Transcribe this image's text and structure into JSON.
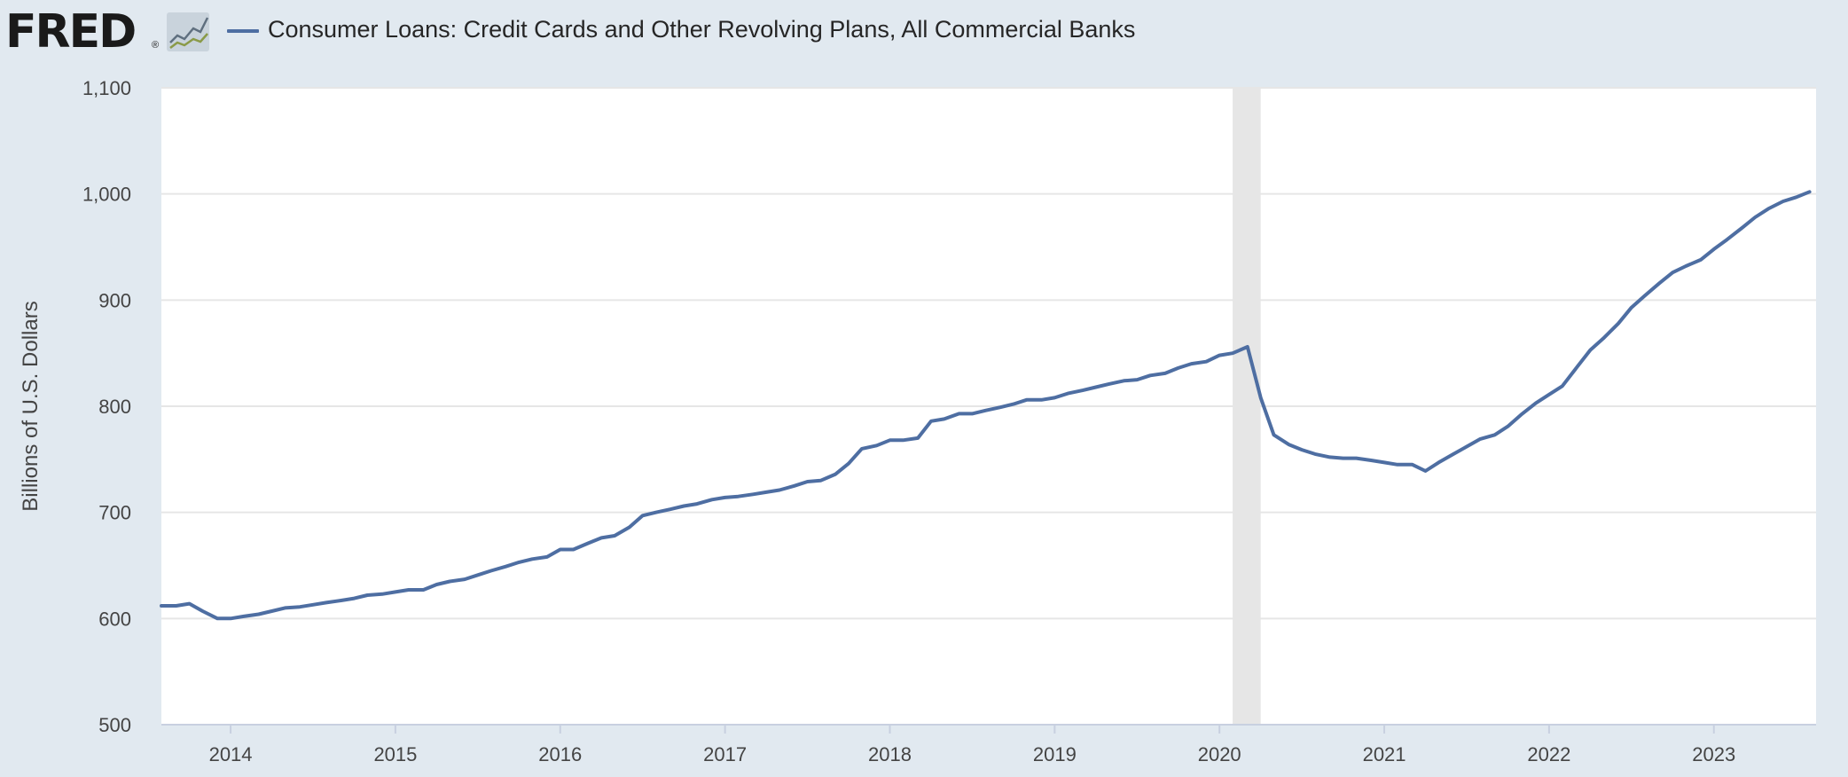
{
  "header": {
    "logo_text": "FRED",
    "logo_registered": "®",
    "series_label": "Consumer Loans: Credit Cards and Other Revolving Plans, All Commercial Banks"
  },
  "colors": {
    "series_line": "#4e6ea2",
    "recession": "#e6e6e6",
    "grid": "#e6e6e6",
    "plot_bg": "#ffffff",
    "page_bg": "#e1e9f0"
  },
  "chart_data": {
    "type": "line",
    "title": "Consumer Loans: Credit Cards and Other Revolving Plans, All Commercial Banks",
    "xlabel": "",
    "ylabel": "Billions of U.S. Dollars",
    "ylim": [
      500,
      1100
    ],
    "xlim": [
      2013.58,
      2023.62
    ],
    "y_ticks": [
      500,
      600,
      700,
      800,
      900,
      1000,
      1100
    ],
    "y_tick_labels": [
      "500",
      "600",
      "700",
      "800",
      "900",
      "1,000",
      "1,100"
    ],
    "x_ticks": [
      2014,
      2015,
      2016,
      2017,
      2018,
      2019,
      2020,
      2021,
      2022,
      2023
    ],
    "x_tick_labels": [
      "2014",
      "2015",
      "2016",
      "2017",
      "2018",
      "2019",
      "2020",
      "2021",
      "2022",
      "2023"
    ],
    "grid": true,
    "recession_shading": [
      {
        "start": 2020.08,
        "end": 2020.25
      }
    ],
    "series": [
      {
        "name": "Consumer Loans: Credit Cards and Other Revolving Plans, All Commercial Banks",
        "x": [
          2013.58,
          2013.67,
          2013.75,
          2013.83,
          2013.92,
          2014.0,
          2014.08,
          2014.17,
          2014.25,
          2014.33,
          2014.42,
          2014.5,
          2014.58,
          2014.67,
          2014.75,
          2014.83,
          2014.92,
          2015.0,
          2015.08,
          2015.17,
          2015.25,
          2015.33,
          2015.42,
          2015.5,
          2015.58,
          2015.67,
          2015.75,
          2015.83,
          2015.92,
          2016.0,
          2016.08,
          2016.17,
          2016.25,
          2016.33,
          2016.42,
          2016.5,
          2016.58,
          2016.67,
          2016.75,
          2016.83,
          2016.92,
          2017.0,
          2017.08,
          2017.17,
          2017.25,
          2017.33,
          2017.42,
          2017.5,
          2017.58,
          2017.67,
          2017.75,
          2017.83,
          2017.92,
          2018.0,
          2018.08,
          2018.17,
          2018.25,
          2018.33,
          2018.42,
          2018.5,
          2018.58,
          2018.67,
          2018.75,
          2018.83,
          2018.92,
          2019.0,
          2019.08,
          2019.17,
          2019.25,
          2019.33,
          2019.42,
          2019.5,
          2019.58,
          2019.67,
          2019.75,
          2019.83,
          2019.92,
          2020.0,
          2020.08,
          2020.17,
          2020.25,
          2020.33,
          2020.42,
          2020.5,
          2020.58,
          2020.67,
          2020.75,
          2020.83,
          2020.92,
          2021.0,
          2021.08,
          2021.17,
          2021.25,
          2021.33,
          2021.42,
          2021.5,
          2021.58,
          2021.67,
          2021.75,
          2021.83,
          2021.92,
          2022.0,
          2022.08,
          2022.17,
          2022.25,
          2022.33,
          2022.42,
          2022.5,
          2022.58,
          2022.67,
          2022.75,
          2022.83,
          2022.92,
          2023.0,
          2023.08,
          2023.17,
          2023.25,
          2023.33,
          2023.42,
          2023.5,
          2023.58
        ],
        "values": [
          612,
          612,
          614,
          607,
          600,
          600,
          602,
          604,
          607,
          610,
          611,
          613,
          615,
          617,
          619,
          622,
          623,
          625,
          627,
          627,
          632,
          635,
          637,
          641,
          645,
          649,
          653,
          656,
          658,
          665,
          665,
          671,
          676,
          678,
          686,
          697,
          700,
          703,
          706,
          708,
          712,
          714,
          715,
          717,
          719,
          721,
          725,
          729,
          730,
          736,
          746,
          760,
          763,
          768,
          768,
          770,
          786,
          788,
          793,
          793,
          796,
          799,
          802,
          806,
          806,
          808,
          812,
          815,
          818,
          821,
          824,
          825,
          829,
          831,
          836,
          840,
          842,
          848,
          850,
          856,
          808,
          773,
          764,
          759,
          755,
          752,
          751,
          751,
          749,
          747,
          745,
          745,
          739,
          747,
          755,
          762,
          769,
          773,
          781,
          792,
          803,
          811,
          819,
          837,
          853,
          864,
          878,
          893,
          904,
          916,
          926,
          932,
          938,
          948,
          957,
          968,
          978,
          986,
          993,
          997,
          1002
        ]
      }
    ]
  }
}
